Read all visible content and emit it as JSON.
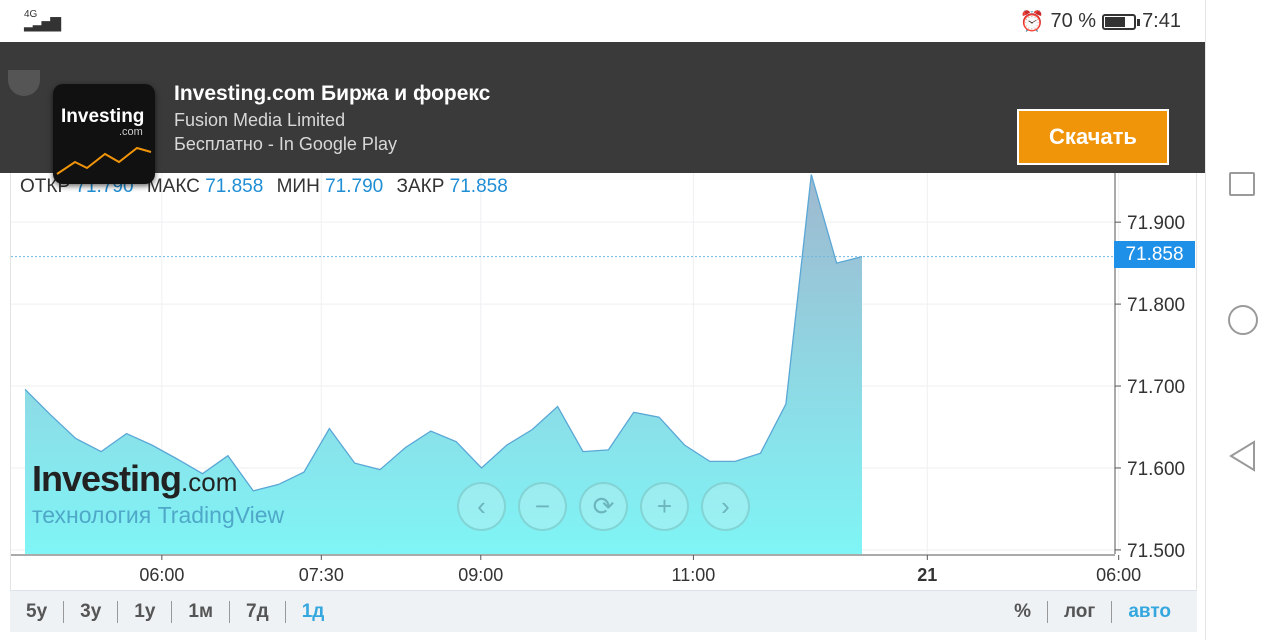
{
  "status_bar": {
    "network": "4G",
    "battery_percent": "70 %",
    "battery_level": 0.7,
    "time": "7:41"
  },
  "ad": {
    "app_name": "Investing.com Биржа и форекс",
    "publisher": "Fusion Media Limited",
    "price_line": "Бесплатно - In Google Play",
    "icon_text": "Investing",
    "icon_sub": ".com",
    "download_label": "Скачать"
  },
  "ohlc": {
    "open_label": "ОТКР",
    "open_value": "71.790",
    "high_label": "МАКС",
    "high_value": "71.858",
    "low_label": "МИН",
    "low_value": "71.790",
    "close_label": "ЗАКР",
    "close_value": "71.858"
  },
  "watermark": {
    "logo": "Investing",
    "logo_suffix": ".com",
    "subtitle": "технология TradingView"
  },
  "current_price": "71.858",
  "chart_data": {
    "type": "area",
    "y_ticks": [
      71.5,
      71.6,
      71.7,
      71.8,
      71.9
    ],
    "y_tick_labels": [
      "71.500",
      "71.600",
      "71.700",
      "71.800",
      "71.900"
    ],
    "ylim": [
      71.495,
      71.96
    ],
    "x_tick_labels": [
      "06:00",
      "07:30",
      "09:00",
      "11:00",
      "21",
      "06:00"
    ],
    "x_tick_positions": [
      0.14,
      0.29,
      0.44,
      0.64,
      0.86,
      1.04
    ],
    "series": [
      {
        "values": [
          71.696,
          71.665,
          71.636,
          71.62,
          71.642,
          71.628,
          71.611,
          71.593,
          71.615,
          71.572,
          71.58,
          71.595,
          71.648,
          71.606,
          71.598,
          71.625,
          71.645,
          71.632,
          71.6,
          71.628,
          71.647,
          71.675,
          71.62,
          71.622,
          71.668,
          71.662,
          71.628,
          71.608,
          71.608,
          71.618,
          71.678,
          71.958,
          71.85,
          71.858
        ]
      }
    ],
    "accent_color": "#5aa7d6",
    "fill_top": "#9fb8cf",
    "fill_bottom": "#7ff5f6"
  },
  "nav": {
    "ranges": [
      "5у",
      "3у",
      "1у",
      "1м",
      "7д",
      "1д"
    ],
    "active_range": "1д",
    "scale_options": [
      "%",
      "лог",
      "авто"
    ],
    "active_scale": "авто"
  },
  "controls": {
    "left": "‹",
    "zoom_out": "−",
    "reset": "⟳",
    "zoom_in": "+",
    "right": "›"
  }
}
